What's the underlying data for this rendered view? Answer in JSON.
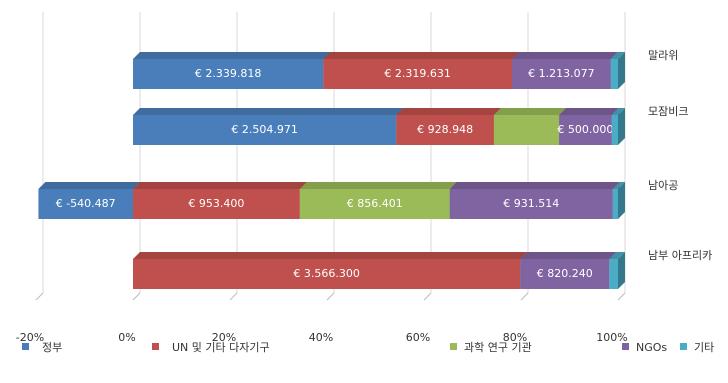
{
  "chart_data": {
    "type": "bar_stacked_percent_horizontal",
    "categories": [
      "말라위",
      "모잠비크",
      "남아공",
      "남부 아프리카"
    ],
    "series": [
      {
        "name": "정부",
        "color": "#4a7ebb",
        "values": [
          2339818,
          2504971,
          -540487,
          null
        ],
        "value_labels": [
          "€ 2.339.818",
          "€ 2.504.971",
          "€ -540.487",
          null
        ]
      },
      {
        "name": "UN 및 기타 다자기구",
        "color": "#c0504d",
        "values": [
          2319631,
          928948,
          953400,
          3566300
        ],
        "value_labels": [
          "€ 2.319.631",
          "€ 928.948",
          "€ 953.400",
          "€ 3.566.300"
        ]
      },
      {
        "name": "과학 연구 기관",
        "color": "#9bbb59",
        "values": [
          null,
          620000,
          856401,
          null
        ],
        "value_labels": [
          null,
          null,
          "€ 856.401",
          null
        ]
      },
      {
        "name": "NGOs",
        "color": "#8064a2",
        "values": [
          1213077,
          500000,
          931514,
          820240
        ],
        "value_labels": [
          "€ 1.213.077",
          "€ 500.000",
          "€ 931.514",
          "€ 820.240"
        ]
      },
      {
        "name": "기타",
        "color": "#4bacc6",
        "values": [
          90000,
          60000,
          30000,
          80000
        ],
        "value_labels": [
          null,
          null,
          null,
          null
        ]
      }
    ],
    "xlim": [
      -20,
      100
    ],
    "xticks": [
      {
        "value": -20,
        "label": "-20%"
      },
      {
        "value": 0,
        "label": "0%"
      },
      {
        "value": 20,
        "label": "20%"
      },
      {
        "value": 40,
        "label": "40%"
      },
      {
        "value": 60,
        "label": "60%"
      },
      {
        "value": 80,
        "label": "80%"
      },
      {
        "value": 100,
        "label": "100%"
      }
    ],
    "grid": true,
    "legend": "bottom"
  }
}
